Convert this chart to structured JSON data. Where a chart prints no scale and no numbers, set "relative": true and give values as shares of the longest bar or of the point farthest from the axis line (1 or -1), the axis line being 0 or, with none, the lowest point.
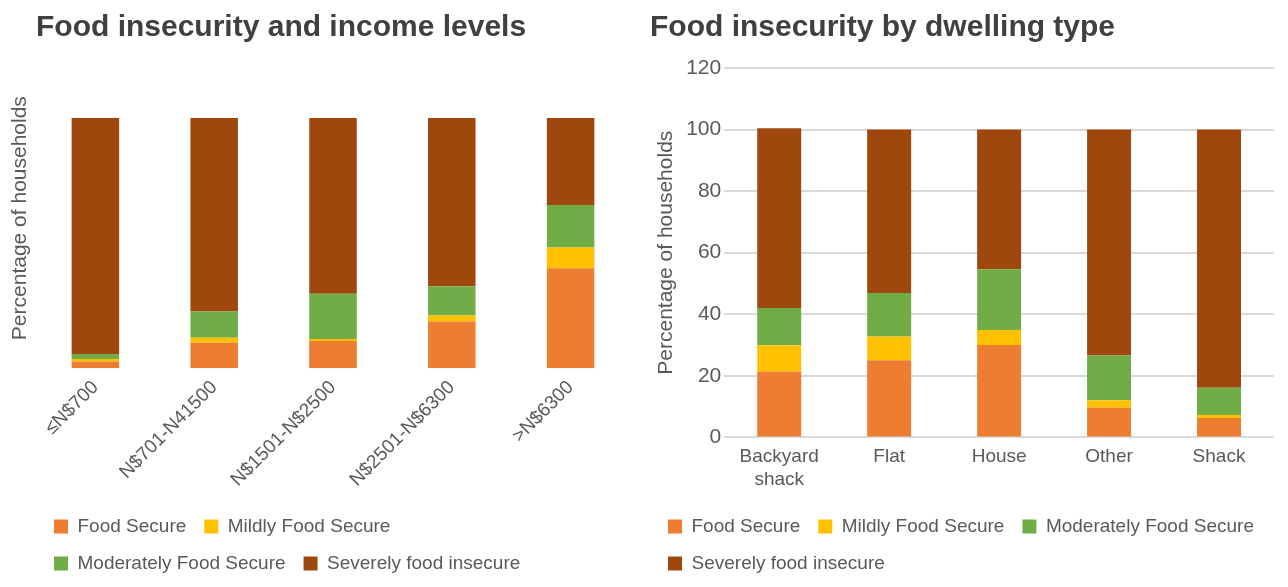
{
  "chart_data": [
    {
      "type": "bar",
      "title": "Food insecurity and income levels",
      "ylabel": "Percentage of households",
      "categories": [
        "≤N$700",
        "N$701-N41500",
        "N$1501-N$2500",
        "N$2501-N$6300",
        ">N$6300"
      ],
      "stacked": true,
      "series": [
        {
          "name": "Food Secure",
          "color": "#ed7d31",
          "values": [
            0.027,
            0.102,
            0.109,
            0.187,
            0.4
          ]
        },
        {
          "name": "Mildly Food Secure",
          "color": "#ffc000",
          "values": [
            0.01,
            0.02,
            0.008,
            0.024,
            0.083
          ]
        },
        {
          "name": "Moderately Food Secure",
          "color": "#70ad47",
          "values": [
            0.02,
            0.105,
            0.181,
            0.117,
            0.17
          ]
        },
        {
          "name": "Severely food insecure",
          "color": "#9e480e",
          "values": [
            0.943,
            0.773,
            0.702,
            0.672,
            0.347
          ]
        }
      ],
      "relative": true,
      "legend": "bottom"
    },
    {
      "type": "bar",
      "title": "Food insecurity by dwelling type",
      "ylabel": "Percentage of households",
      "categories": [
        "Backyard shack",
        "Flat",
        "House",
        "Other",
        "Shack"
      ],
      "stacked": true,
      "series": [
        {
          "name": "Food Secure",
          "color": "#ed7d31",
          "values": [
            21.3,
            25.1,
            30,
            9.6,
            6.3
          ]
        },
        {
          "name": "Mildly Food Secure",
          "color": "#ffc000",
          "values": [
            8.6,
            7.7,
            4.9,
            2.5,
            1
          ]
        },
        {
          "name": "Moderately Food Secure",
          "color": "#70ad47",
          "values": [
            12.1,
            14.1,
            19.7,
            14.5,
            8.8
          ]
        },
        {
          "name": "Severely food insecure",
          "color": "#9e480e",
          "values": [
            58.4,
            53.1,
            45.4,
            73.4,
            83.9
          ]
        }
      ],
      "ylim": [
        0,
        120
      ],
      "yticks": [
        0,
        20,
        40,
        60,
        80,
        100,
        120
      ],
      "grid": "y",
      "legend": "bottom"
    }
  ]
}
